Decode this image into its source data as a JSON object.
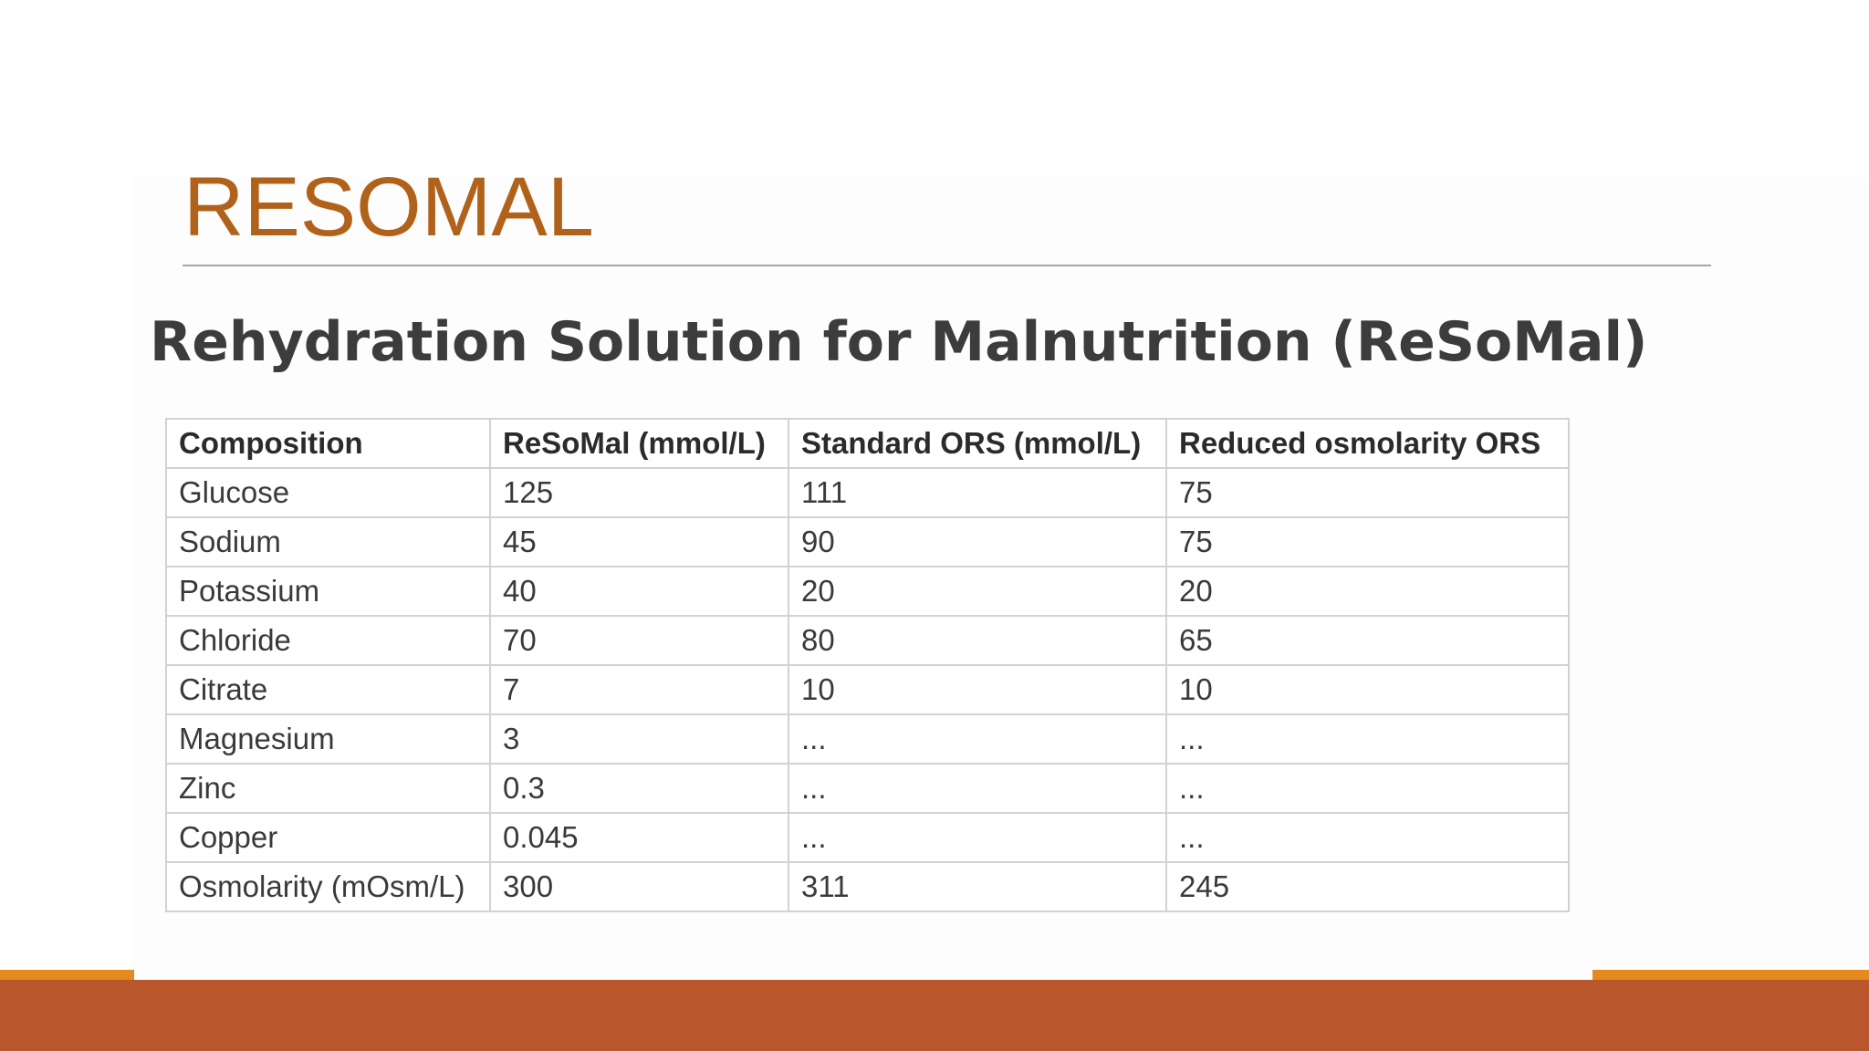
{
  "slide": {
    "title": "RESOMAL",
    "subtitle": "Rehydration Solution for Malnutrition (ReSoMal)"
  },
  "table": {
    "headers": [
      "Composition",
      "ReSoMal (mmol/L)",
      "Standard ORS (mmol/L)",
      "Reduced osmolarity ORS"
    ],
    "rows": [
      [
        "Glucose",
        "125",
        "111",
        "75"
      ],
      [
        "Sodium",
        "45",
        "90",
        "75"
      ],
      [
        "Potassium",
        "40",
        "20",
        "20"
      ],
      [
        "Chloride",
        "70",
        "80",
        "65"
      ],
      [
        "Citrate",
        "7",
        "10",
        "10"
      ],
      [
        "Magnesium",
        "3",
        "...",
        "..."
      ],
      [
        "Zinc",
        "0.3",
        "...",
        "..."
      ],
      [
        "Copper",
        "0.045",
        "...",
        "..."
      ],
      [
        "Osmolarity (mOsm/L)",
        "300",
        "311",
        "245"
      ]
    ]
  },
  "colors": {
    "title": "#b1621a",
    "footer_bar": "#b9562c",
    "footer_accent": "#e48a1f"
  }
}
